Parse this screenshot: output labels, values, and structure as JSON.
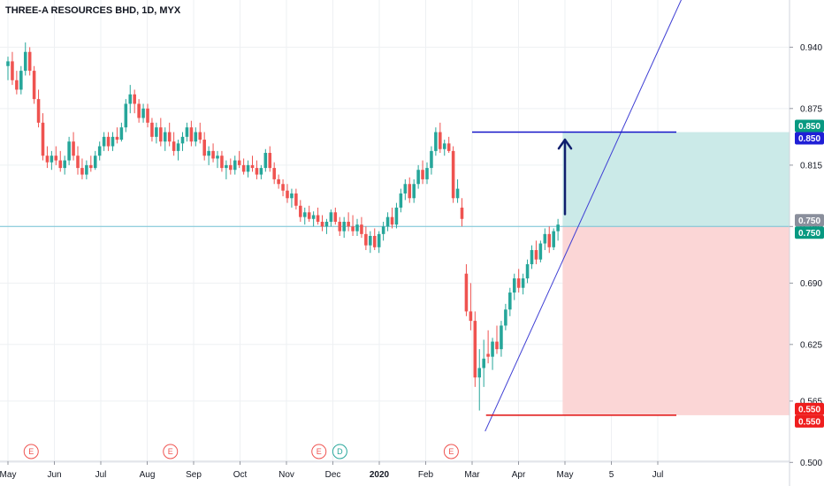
{
  "header": {
    "title": "THREE-A RESOURCES BHD, 1D, MYX"
  },
  "colors": {
    "up": "#26a69a",
    "down": "#ef5350",
    "trendline": "#3f3fd4",
    "target_line": "#1515c8",
    "stop_line": "#e01010",
    "reference_line": "#74c3d6",
    "profit_zone": "#cbeae8",
    "loss_zone": "#fbd6d6",
    "arrow": "#0f1e6e",
    "grid": "#eef0f3"
  },
  "price_tags": [
    {
      "value": "0.850",
      "color": "#089981"
    },
    {
      "value": "0.850",
      "color": "#1f1fd6"
    },
    {
      "value": "0.750",
      "color": "#8a8f9c"
    },
    {
      "value": "0.750",
      "color": "#089981"
    },
    {
      "value": "0.550",
      "color": "#ef1e1e"
    },
    {
      "value": "0.550",
      "color": "#ef1e1e"
    }
  ],
  "events": [
    {
      "label": "E",
      "color": "#ef5350",
      "x_month": 0.5
    },
    {
      "label": "E",
      "color": "#ef5350",
      "x_month": 3.5
    },
    {
      "label": "E",
      "color": "#ef5350",
      "x_month": 6.7
    },
    {
      "label": "D",
      "color": "#26a69a",
      "x_month": 7.15
    },
    {
      "label": "E",
      "color": "#ef5350",
      "x_month": 9.55
    }
  ],
  "chart_data": {
    "type": "candlestick",
    "title": "THREE-A RESOURCES BHD, 1D, MYX",
    "y_ticks": [
      "0.940",
      "0.875",
      "0.815",
      "0.750",
      "0.690",
      "0.625",
      "0.565",
      "0.500"
    ],
    "x_labels": [
      "May",
      "Jun",
      "Jul",
      "Aug",
      "Sep",
      "Oct",
      "Nov",
      "Dec",
      "2020",
      "Feb",
      "Mar",
      "Apr",
      "May",
      "5",
      "Jul"
    ],
    "x_label_bold": "2020",
    "ylim": [
      0.475,
      0.99
    ],
    "candles": [
      [
        0.92,
        0.93,
        0.905,
        0.925
      ],
      [
        0.925,
        0.935,
        0.9,
        0.905
      ],
      [
        0.905,
        0.915,
        0.89,
        0.895
      ],
      [
        0.895,
        0.92,
        0.89,
        0.915
      ],
      [
        0.915,
        0.945,
        0.91,
        0.935
      ],
      [
        0.935,
        0.94,
        0.91,
        0.915
      ],
      [
        0.915,
        0.92,
        0.88,
        0.885
      ],
      [
        0.885,
        0.895,
        0.855,
        0.86
      ],
      [
        0.86,
        0.87,
        0.82,
        0.825
      ],
      [
        0.825,
        0.835,
        0.812,
        0.818
      ],
      [
        0.818,
        0.83,
        0.81,
        0.825
      ],
      [
        0.825,
        0.835,
        0.815,
        0.82
      ],
      [
        0.82,
        0.83,
        0.808,
        0.812
      ],
      [
        0.812,
        0.825,
        0.805,
        0.82
      ],
      [
        0.82,
        0.845,
        0.815,
        0.84
      ],
      [
        0.84,
        0.85,
        0.82,
        0.825
      ],
      [
        0.825,
        0.835,
        0.805,
        0.812
      ],
      [
        0.812,
        0.822,
        0.8,
        0.805
      ],
      [
        0.805,
        0.82,
        0.8,
        0.815
      ],
      [
        0.815,
        0.825,
        0.808,
        0.812
      ],
      [
        0.812,
        0.83,
        0.81,
        0.825
      ],
      [
        0.825,
        0.84,
        0.82,
        0.835
      ],
      [
        0.835,
        0.85,
        0.83,
        0.845
      ],
      [
        0.845,
        0.85,
        0.83,
        0.835
      ],
      [
        0.835,
        0.85,
        0.83,
        0.845
      ],
      [
        0.845,
        0.855,
        0.838,
        0.842
      ],
      [
        0.842,
        0.86,
        0.84,
        0.855
      ],
      [
        0.855,
        0.885,
        0.85,
        0.88
      ],
      [
        0.88,
        0.9,
        0.87,
        0.89
      ],
      [
        0.89,
        0.895,
        0.87,
        0.88
      ],
      [
        0.88,
        0.885,
        0.86,
        0.865
      ],
      [
        0.865,
        0.88,
        0.86,
        0.875
      ],
      [
        0.875,
        0.88,
        0.855,
        0.86
      ],
      [
        0.86,
        0.865,
        0.84,
        0.845
      ],
      [
        0.845,
        0.86,
        0.838,
        0.855
      ],
      [
        0.855,
        0.865,
        0.835,
        0.84
      ],
      [
        0.84,
        0.855,
        0.83,
        0.85
      ],
      [
        0.85,
        0.86,
        0.835,
        0.84
      ],
      [
        0.84,
        0.85,
        0.825,
        0.83
      ],
      [
        0.83,
        0.842,
        0.82,
        0.838
      ],
      [
        0.838,
        0.85,
        0.83,
        0.845
      ],
      [
        0.845,
        0.86,
        0.84,
        0.855
      ],
      [
        0.855,
        0.862,
        0.835,
        0.84
      ],
      [
        0.84,
        0.855,
        0.835,
        0.85
      ],
      [
        0.85,
        0.86,
        0.838,
        0.842
      ],
      [
        0.842,
        0.85,
        0.82,
        0.825
      ],
      [
        0.825,
        0.835,
        0.815,
        0.83
      ],
      [
        0.83,
        0.838,
        0.818,
        0.822
      ],
      [
        0.822,
        0.83,
        0.812,
        0.825
      ],
      [
        0.825,
        0.83,
        0.808,
        0.812
      ],
      [
        0.812,
        0.82,
        0.8,
        0.815
      ],
      [
        0.815,
        0.822,
        0.805,
        0.81
      ],
      [
        0.81,
        0.825,
        0.805,
        0.82
      ],
      [
        0.82,
        0.83,
        0.812,
        0.815
      ],
      [
        0.815,
        0.822,
        0.805,
        0.808
      ],
      [
        0.808,
        0.82,
        0.802,
        0.815
      ],
      [
        0.815,
        0.825,
        0.808,
        0.812
      ],
      [
        0.812,
        0.82,
        0.8,
        0.805
      ],
      [
        0.805,
        0.815,
        0.8,
        0.812
      ],
      [
        0.812,
        0.832,
        0.808,
        0.828
      ],
      [
        0.828,
        0.835,
        0.808,
        0.812
      ],
      [
        0.812,
        0.818,
        0.795,
        0.8
      ],
      [
        0.8,
        0.805,
        0.79,
        0.795
      ],
      [
        0.795,
        0.8,
        0.782,
        0.788
      ],
      [
        0.788,
        0.795,
        0.775,
        0.78
      ],
      [
        0.78,
        0.79,
        0.77,
        0.785
      ],
      [
        0.785,
        0.79,
        0.768,
        0.772
      ],
      [
        0.772,
        0.778,
        0.755,
        0.76
      ],
      [
        0.76,
        0.77,
        0.752,
        0.765
      ],
      [
        0.765,
        0.772,
        0.755,
        0.758
      ],
      [
        0.758,
        0.766,
        0.75,
        0.762
      ],
      [
        0.762,
        0.77,
        0.752,
        0.755
      ],
      [
        0.755,
        0.762,
        0.745,
        0.75
      ],
      [
        0.75,
        0.758,
        0.742,
        0.755
      ],
      [
        0.755,
        0.768,
        0.75,
        0.765
      ],
      [
        0.765,
        0.77,
        0.752,
        0.755
      ],
      [
        0.755,
        0.76,
        0.74,
        0.745
      ],
      [
        0.745,
        0.76,
        0.738,
        0.755
      ],
      [
        0.755,
        0.765,
        0.745,
        0.75
      ],
      [
        0.75,
        0.762,
        0.74,
        0.745
      ],
      [
        0.745,
        0.758,
        0.74,
        0.752
      ],
      [
        0.752,
        0.76,
        0.738,
        0.742
      ],
      [
        0.742,
        0.75,
        0.725,
        0.73
      ],
      [
        0.73,
        0.745,
        0.722,
        0.74
      ],
      [
        0.74,
        0.748,
        0.725,
        0.728
      ],
      [
        0.728,
        0.745,
        0.722,
        0.742
      ],
      [
        0.742,
        0.755,
        0.735,
        0.75
      ],
      [
        0.75,
        0.765,
        0.745,
        0.76
      ],
      [
        0.76,
        0.77,
        0.748,
        0.752
      ],
      [
        0.752,
        0.775,
        0.748,
        0.77
      ],
      [
        0.77,
        0.79,
        0.765,
        0.785
      ],
      [
        0.785,
        0.8,
        0.778,
        0.795
      ],
      [
        0.795,
        0.802,
        0.775,
        0.78
      ],
      [
        0.78,
        0.8,
        0.775,
        0.795
      ],
      [
        0.795,
        0.815,
        0.79,
        0.81
      ],
      [
        0.81,
        0.82,
        0.795,
        0.8
      ],
      [
        0.8,
        0.818,
        0.795,
        0.812
      ],
      [
        0.812,
        0.835,
        0.805,
        0.83
      ],
      [
        0.83,
        0.855,
        0.825,
        0.85
      ],
      [
        0.85,
        0.86,
        0.828,
        0.832
      ],
      [
        0.832,
        0.842,
        0.825,
        0.838
      ],
      [
        0.838,
        0.845,
        0.828,
        0.83
      ],
      [
        0.83,
        0.835,
        0.775,
        0.78
      ],
      [
        0.78,
        0.8,
        0.775,
        0.79
      ],
      [
        0.77,
        0.78,
        0.75,
        0.758
      ],
      [
        0.7,
        0.71,
        0.655,
        0.66
      ],
      [
        0.66,
        0.69,
        0.64,
        0.65
      ],
      [
        0.65,
        0.66,
        0.58,
        0.59
      ],
      [
        0.59,
        0.62,
        0.555,
        0.6
      ],
      [
        0.6,
        0.63,
        0.58,
        0.61
      ],
      [
        0.615,
        0.64,
        0.605,
        0.612
      ],
      [
        0.612,
        0.632,
        0.598,
        0.628
      ],
      [
        0.628,
        0.645,
        0.615,
        0.62
      ],
      [
        0.62,
        0.65,
        0.612,
        0.645
      ],
      [
        0.645,
        0.668,
        0.64,
        0.662
      ],
      [
        0.662,
        0.685,
        0.655,
        0.68
      ],
      [
        0.68,
        0.7,
        0.672,
        0.695
      ],
      [
        0.695,
        0.705,
        0.68,
        0.685
      ],
      [
        0.685,
        0.7,
        0.678,
        0.695
      ],
      [
        0.695,
        0.715,
        0.69,
        0.71
      ],
      [
        0.71,
        0.73,
        0.705,
        0.725
      ],
      [
        0.725,
        0.735,
        0.71,
        0.715
      ],
      [
        0.715,
        0.735,
        0.712,
        0.732
      ],
      [
        0.732,
        0.748,
        0.725,
        0.742
      ],
      [
        0.742,
        0.75,
        0.722,
        0.728
      ],
      [
        0.728,
        0.748,
        0.725,
        0.745
      ],
      [
        0.745,
        0.758,
        0.735,
        0.752
      ]
    ],
    "candle_x_month_start": 0.0,
    "candle_x_month_end": 11.85,
    "reference_price": 0.75,
    "target_price": 0.85,
    "stop_price": 0.55,
    "target_line_x_month": [
      10.0,
      14.4
    ],
    "stop_line_x_month": [
      10.3,
      14.4
    ],
    "trendline": {
      "from": [
        10.28,
        0.533
      ],
      "to": [
        14.55,
        0.995
      ]
    },
    "position": {
      "x_month_start": 11.95,
      "entry": 0.75,
      "target": 0.85,
      "stop": 0.55
    },
    "arrow": {
      "x_month": 12.0,
      "from": 0.763,
      "to": 0.842
    }
  }
}
